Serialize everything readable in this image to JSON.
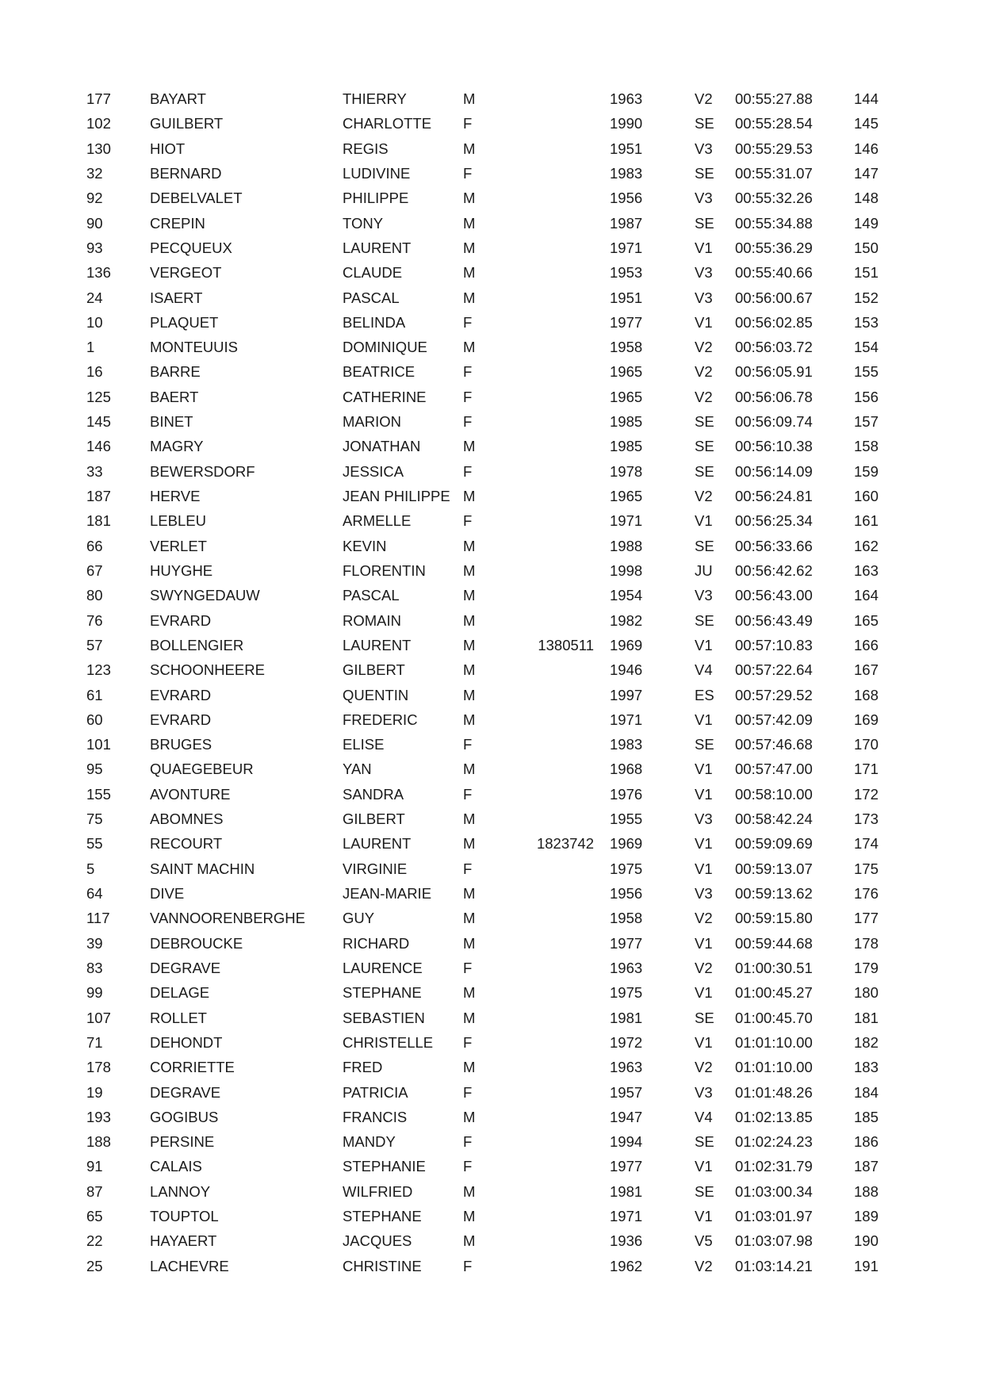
{
  "page": {
    "background": "#ffffff",
    "text_color": "#1a1a1a"
  },
  "results_table": {
    "fields": [
      "bib",
      "last_name",
      "first_name",
      "sex",
      "license",
      "birth_year",
      "category",
      "time",
      "rank"
    ],
    "rows": [
      [
        "177",
        "BAYART",
        "THIERRY",
        "M",
        "",
        "1963",
        "V2",
        "00:55:27.88",
        "144"
      ],
      [
        "102",
        "GUILBERT",
        "CHARLOTTE",
        "F",
        "",
        "1990",
        "SE",
        "00:55:28.54",
        "145"
      ],
      [
        "130",
        "HIOT",
        "REGIS",
        "M",
        "",
        "1951",
        "V3",
        "00:55:29.53",
        "146"
      ],
      [
        "32",
        "BERNARD",
        "LUDIVINE",
        "F",
        "",
        "1983",
        "SE",
        "00:55:31.07",
        "147"
      ],
      [
        "92",
        "DEBELVALET",
        "PHILIPPE",
        "M",
        "",
        "1956",
        "V3",
        "00:55:32.26",
        "148"
      ],
      [
        "90",
        "CREPIN",
        "TONY",
        "M",
        "",
        "1987",
        "SE",
        "00:55:34.88",
        "149"
      ],
      [
        "93",
        "PECQUEUX",
        "LAURENT",
        "M",
        "",
        "1971",
        "V1",
        "00:55:36.29",
        "150"
      ],
      [
        "136",
        "VERGEOT",
        "CLAUDE",
        "M",
        "",
        "1953",
        "V3",
        "00:55:40.66",
        "151"
      ],
      [
        "24",
        "ISAERT",
        "PASCAL",
        "M",
        "",
        "1951",
        "V3",
        "00:56:00.67",
        "152"
      ],
      [
        "10",
        "PLAQUET",
        "BELINDA",
        "F",
        "",
        "1977",
        "V1",
        "00:56:02.85",
        "153"
      ],
      [
        "1",
        "MONTEUUIS",
        "DOMINIQUE",
        "M",
        "",
        "1958",
        "V2",
        "00:56:03.72",
        "154"
      ],
      [
        "16",
        "BARRE",
        "BEATRICE",
        "F",
        "",
        "1965",
        "V2",
        "00:56:05.91",
        "155"
      ],
      [
        "125",
        "BAERT",
        "CATHERINE",
        "F",
        "",
        "1965",
        "V2",
        "00:56:06.78",
        "156"
      ],
      [
        "145",
        "BINET",
        "MARION",
        "F",
        "",
        "1985",
        "SE",
        "00:56:09.74",
        "157"
      ],
      [
        "146",
        "MAGRY",
        "JONATHAN",
        "M",
        "",
        "1985",
        "SE",
        "00:56:10.38",
        "158"
      ],
      [
        "33",
        "BEWERSDORF",
        "JESSICA",
        "F",
        "",
        "1978",
        "SE",
        "00:56:14.09",
        "159"
      ],
      [
        "187",
        "HERVE",
        "JEAN PHILIPPE",
        "M",
        "",
        "1965",
        "V2",
        "00:56:24.81",
        "160"
      ],
      [
        "181",
        "LEBLEU",
        "ARMELLE",
        "F",
        "",
        "1971",
        "V1",
        "00:56:25.34",
        "161"
      ],
      [
        "66",
        "VERLET",
        "KEVIN",
        "M",
        "",
        "1988",
        "SE",
        "00:56:33.66",
        "162"
      ],
      [
        "67",
        "HUYGHE",
        "FLORENTIN",
        "M",
        "",
        "1998",
        "JU",
        "00:56:42.62",
        "163"
      ],
      [
        "80",
        "SWYNGEDAUW",
        "PASCAL",
        "M",
        "",
        "1954",
        "V3",
        "00:56:43.00",
        "164"
      ],
      [
        "76",
        "EVRARD",
        "ROMAIN",
        "M",
        "",
        "1982",
        "SE",
        "00:56:43.49",
        "165"
      ],
      [
        "57",
        "BOLLENGIER",
        "LAURENT",
        "M",
        "1380511",
        "1969",
        "V1",
        "00:57:10.83",
        "166"
      ],
      [
        "123",
        "SCHOONHEERE",
        "GILBERT",
        "M",
        "",
        "1946",
        "V4",
        "00:57:22.64",
        "167"
      ],
      [
        "61",
        "EVRARD",
        "QUENTIN",
        "M",
        "",
        "1997",
        "ES",
        "00:57:29.52",
        "168"
      ],
      [
        "60",
        "EVRARD",
        "FREDERIC",
        "M",
        "",
        "1971",
        "V1",
        "00:57:42.09",
        "169"
      ],
      [
        "101",
        "BRUGES",
        "ELISE",
        "F",
        "",
        "1983",
        "SE",
        "00:57:46.68",
        "170"
      ],
      [
        "95",
        "QUAEGEBEUR",
        "YAN",
        "M",
        "",
        "1968",
        "V1",
        "00:57:47.00",
        "171"
      ],
      [
        "155",
        "AVONTURE",
        "SANDRA",
        "F",
        "",
        "1976",
        "V1",
        "00:58:10.00",
        "172"
      ],
      [
        "75",
        "ABOMNES",
        "GILBERT",
        "M",
        "",
        "1955",
        "V3",
        "00:58:42.24",
        "173"
      ],
      [
        "55",
        "RECOURT",
        "LAURENT",
        "M",
        "1823742",
        "1969",
        "V1",
        "00:59:09.69",
        "174"
      ],
      [
        "5",
        "SAINT MACHIN",
        "VIRGINIE",
        "F",
        "",
        "1975",
        "V1",
        "00:59:13.07",
        "175"
      ],
      [
        "64",
        "DIVE",
        "JEAN-MARIE",
        "M",
        "",
        "1956",
        "V3",
        "00:59:13.62",
        "176"
      ],
      [
        "117",
        "VANNOORENBERGHE",
        "GUY",
        "M",
        "",
        "1958",
        "V2",
        "00:59:15.80",
        "177"
      ],
      [
        "39",
        "DEBROUCKE",
        "RICHARD",
        "M",
        "",
        "1977",
        "V1",
        "00:59:44.68",
        "178"
      ],
      [
        "83",
        "DEGRAVE",
        "LAURENCE",
        "F",
        "",
        "1963",
        "V2",
        "01:00:30.51",
        "179"
      ],
      [
        "99",
        "DELAGE",
        "STEPHANE",
        "M",
        "",
        "1975",
        "V1",
        "01:00:45.27",
        "180"
      ],
      [
        "107",
        "ROLLET",
        "SEBASTIEN",
        "M",
        "",
        "1981",
        "SE",
        "01:00:45.70",
        "181"
      ],
      [
        "71",
        "DEHONDT",
        "CHRISTELLE",
        "F",
        "",
        "1972",
        "V1",
        "01:01:10.00",
        "182"
      ],
      [
        "178",
        "CORRIETTE",
        "FRED",
        "M",
        "",
        "1963",
        "V2",
        "01:01:10.00",
        "183"
      ],
      [
        "19",
        "DEGRAVE",
        "PATRICIA",
        "F",
        "",
        "1957",
        "V3",
        "01:01:48.26",
        "184"
      ],
      [
        "193",
        "GOGIBUS",
        "FRANCIS",
        "M",
        "",
        "1947",
        "V4",
        "01:02:13.85",
        "185"
      ],
      [
        "188",
        "PERSINE",
        "MANDY",
        "F",
        "",
        "1994",
        "SE",
        "01:02:24.23",
        "186"
      ],
      [
        "91",
        "CALAIS",
        "STEPHANIE",
        "F",
        "",
        "1977",
        "V1",
        "01:02:31.79",
        "187"
      ],
      [
        "87",
        "LANNOY",
        "WILFRIED",
        "M",
        "",
        "1981",
        "SE",
        "01:03:00.34",
        "188"
      ],
      [
        "65",
        "TOUPTOL",
        "STEPHANE",
        "M",
        "",
        "1971",
        "V1",
        "01:03:01.97",
        "189"
      ],
      [
        "22",
        "HAYAERT",
        "JACQUES",
        "M",
        "",
        "1936",
        "V5",
        "01:03:07.98",
        "190"
      ],
      [
        "25",
        "LACHEVRE",
        "CHRISTINE",
        "F",
        "",
        "1962",
        "V2",
        "01:03:14.21",
        "191"
      ]
    ]
  }
}
